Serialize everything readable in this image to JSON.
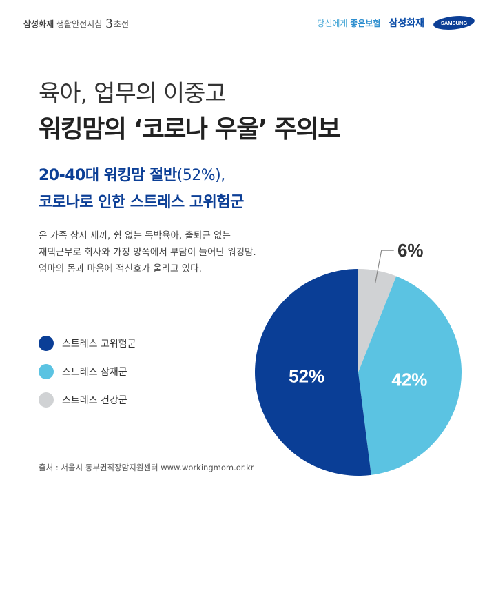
{
  "header": {
    "brand_left_main": "삼성화재",
    "brand_left_sub": "생활안전지침",
    "brand_left_num": "3",
    "brand_left_suffix": "초전",
    "tagline_prefix": "당신에게",
    "tagline_bold": "좋은보험",
    "company_name": "삼성화재",
    "logo_text": "SAMSUNG"
  },
  "title": {
    "line1": "육아, 업무의 이중고",
    "line2": "워킹맘의 ‘코로나 우울’ 주의보"
  },
  "subtitle": {
    "line1_bold": "20-40대 워킹맘 절반",
    "line1_light": "(52%),",
    "line2": "코로나로 인한 스트레스 고위험군"
  },
  "body": {
    "line1": "온 가족 삼시 세끼, 쉼 없는 독박육아, 출퇴근 없는",
    "line2": "재택근무로 회사와 가정 양쪽에서 부담이 늘어난 워킹맘.",
    "line3": "엄마의 몸과 마음에 적신호가 울리고 있다."
  },
  "chart_data": {
    "type": "pie",
    "slices": [
      {
        "label": "스트레스 고위험군",
        "value": 52,
        "display": "52%",
        "color": "#0a3e96"
      },
      {
        "label": "스트레스 잠재군",
        "value": 42,
        "display": "42%",
        "color": "#5bc3e2"
      },
      {
        "label": "스트레스 건강군",
        "value": 6,
        "display": "6%",
        "color": "#d0d2d4"
      }
    ],
    "legend_position": "left"
  },
  "source": "출처 : 서울시 동부권직장맘지원센터 www.workingmom.or.kr"
}
